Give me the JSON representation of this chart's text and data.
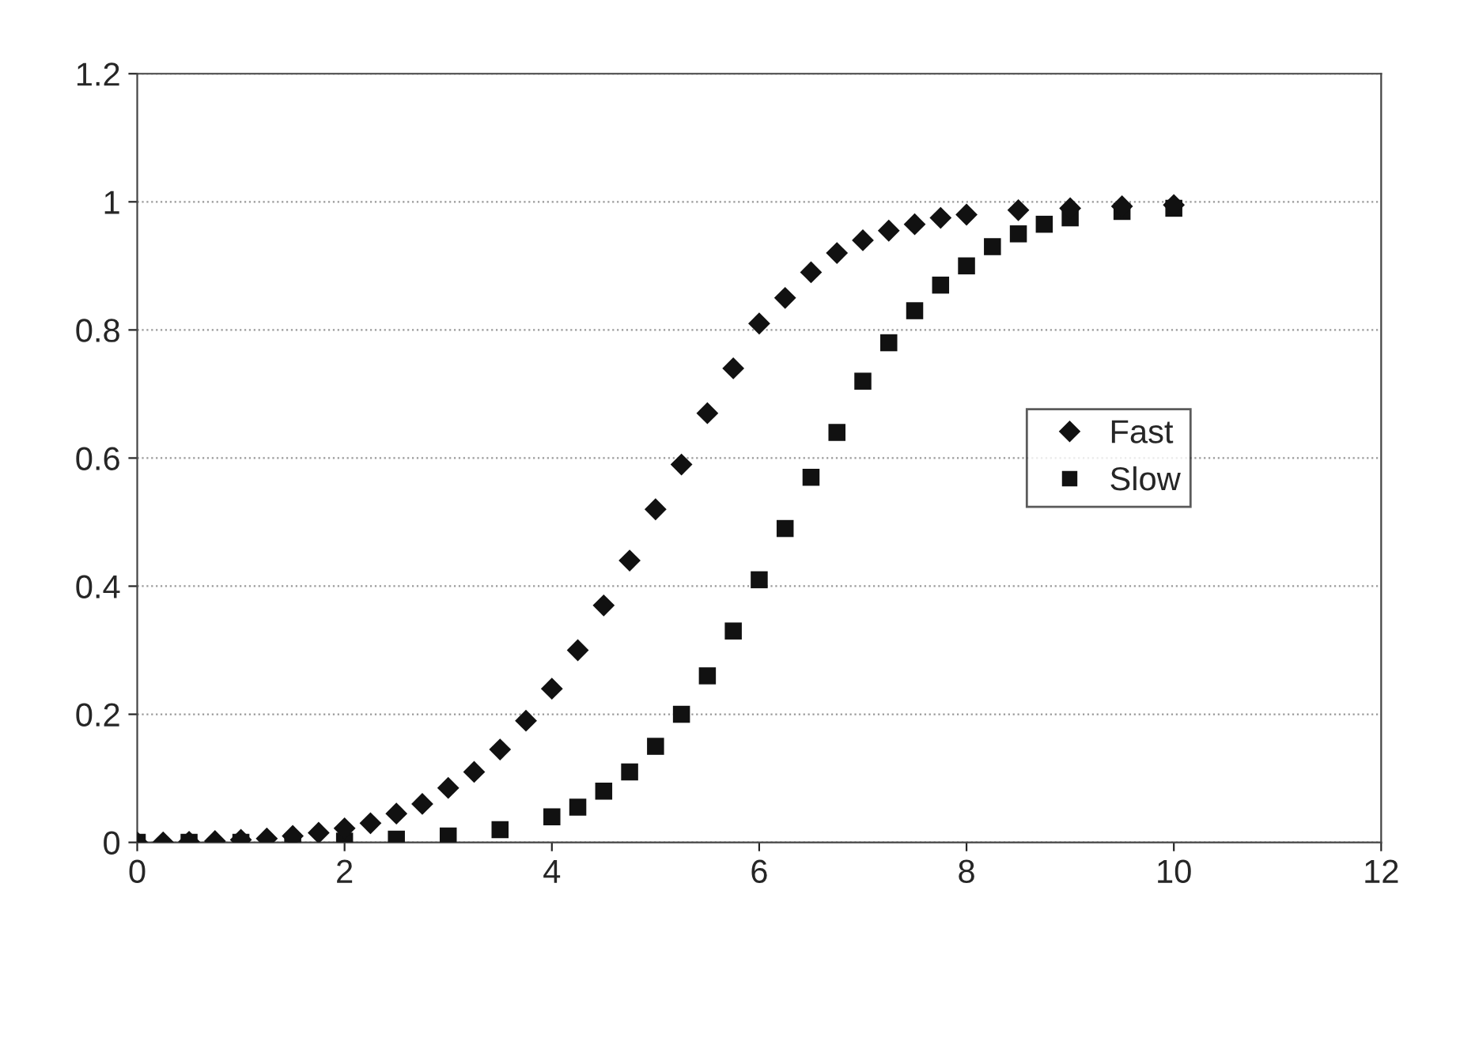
{
  "chart_data": {
    "type": "scatter",
    "xlim": [
      0,
      12
    ],
    "xticks": [
      0,
      2,
      4,
      6,
      8,
      10,
      12
    ],
    "ylim": [
      0,
      1.2
    ],
    "yticks": [
      0,
      0.2,
      0.4,
      0.6,
      0.8,
      1,
      1.2
    ],
    "grid": "y",
    "legend": "right",
    "series": [
      {
        "name": "Fast",
        "color": "#111111",
        "marker": "diamond",
        "x": [
          0,
          0.25,
          0.5,
          0.75,
          1,
          1.25,
          1.5,
          1.75,
          2,
          2.25,
          2.5,
          2.75,
          3,
          3.25,
          3.5,
          3.75,
          4,
          4.25,
          4.5,
          4.75,
          5,
          5.25,
          5.5,
          5.75,
          6,
          6.25,
          6.5,
          6.75,
          7,
          7.25,
          7.5,
          7.75,
          8,
          8.5,
          9,
          9.5,
          10
        ],
        "values": [
          0,
          0,
          0.001,
          0.002,
          0.004,
          0.006,
          0.01,
          0.015,
          0.022,
          0.03,
          0.045,
          0.06,
          0.085,
          0.11,
          0.145,
          0.19,
          0.24,
          0.3,
          0.37,
          0.44,
          0.52,
          0.59,
          0.67,
          0.74,
          0.81,
          0.85,
          0.89,
          0.92,
          0.94,
          0.955,
          0.965,
          0.975,
          0.98,
          0.987,
          0.99,
          0.993,
          0.995
        ]
      },
      {
        "name": "Slow",
        "color": "#111111",
        "marker": "square",
        "x": [
          0,
          0.5,
          1,
          1.5,
          2,
          2.5,
          3,
          3.5,
          4,
          4.25,
          4.5,
          4.75,
          5,
          5.25,
          5.5,
          5.75,
          6,
          6.25,
          6.5,
          6.75,
          7,
          7.25,
          7.5,
          7.75,
          8,
          8.25,
          8.5,
          8.75,
          9,
          9.5,
          10
        ],
        "values": [
          0,
          0,
          0,
          0,
          0.002,
          0.005,
          0.01,
          0.02,
          0.04,
          0.055,
          0.08,
          0.11,
          0.15,
          0.2,
          0.26,
          0.33,
          0.41,
          0.49,
          0.57,
          0.64,
          0.72,
          0.78,
          0.83,
          0.87,
          0.9,
          0.93,
          0.95,
          0.965,
          0.975,
          0.985,
          0.99
        ]
      }
    ]
  }
}
